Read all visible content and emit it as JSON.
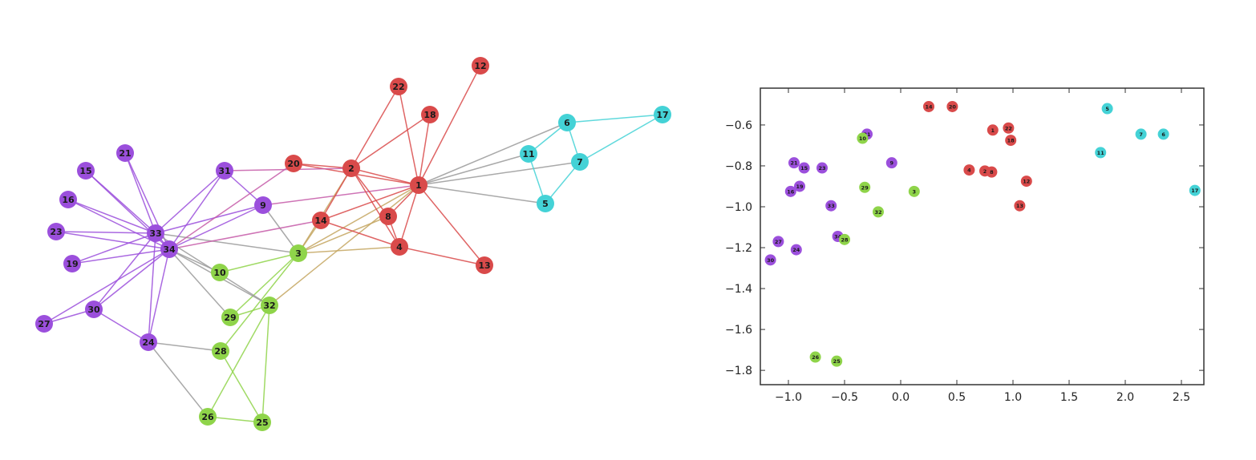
{
  "colors": {
    "purple": "#9b4fdc",
    "red": "#d94a4a",
    "cyan": "#44d2d6",
    "green": "#8fd44a",
    "gray": "#9a9a9a",
    "purple_red": "#c65aa8",
    "green_red": "#c4a660",
    "node_text": "#1a1a1a"
  },
  "graph": {
    "nodes": [
      {
        "id": "1",
        "community": "red"
      },
      {
        "id": "2",
        "community": "red"
      },
      {
        "id": "3",
        "community": "green"
      },
      {
        "id": "4",
        "community": "red"
      },
      {
        "id": "5",
        "community": "cyan"
      },
      {
        "id": "6",
        "community": "cyan"
      },
      {
        "id": "7",
        "community": "cyan"
      },
      {
        "id": "8",
        "community": "red"
      },
      {
        "id": "9",
        "community": "purple"
      },
      {
        "id": "10",
        "community": "green"
      },
      {
        "id": "11",
        "community": "cyan"
      },
      {
        "id": "12",
        "community": "red"
      },
      {
        "id": "13",
        "community": "red"
      },
      {
        "id": "14",
        "community": "red"
      },
      {
        "id": "15",
        "community": "purple"
      },
      {
        "id": "16",
        "community": "purple"
      },
      {
        "id": "17",
        "community": "cyan"
      },
      {
        "id": "18",
        "community": "red"
      },
      {
        "id": "19",
        "community": "purple"
      },
      {
        "id": "20",
        "community": "red"
      },
      {
        "id": "21",
        "community": "purple"
      },
      {
        "id": "22",
        "community": "red"
      },
      {
        "id": "23",
        "community": "purple"
      },
      {
        "id": "24",
        "community": "purple"
      },
      {
        "id": "25",
        "community": "green"
      },
      {
        "id": "26",
        "community": "green"
      },
      {
        "id": "27",
        "community": "purple"
      },
      {
        "id": "28",
        "community": "green"
      },
      {
        "id": "29",
        "community": "green"
      },
      {
        "id": "30",
        "community": "purple"
      },
      {
        "id": "31",
        "community": "purple"
      },
      {
        "id": "32",
        "community": "green"
      },
      {
        "id": "33",
        "community": "purple"
      },
      {
        "id": "34",
        "community": "purple"
      }
    ],
    "edges": [
      [
        "1",
        "2"
      ],
      [
        "1",
        "3"
      ],
      [
        "1",
        "4"
      ],
      [
        "1",
        "5"
      ],
      [
        "1",
        "6"
      ],
      [
        "1",
        "7"
      ],
      [
        "1",
        "8"
      ],
      [
        "1",
        "9"
      ],
      [
        "1",
        "11"
      ],
      [
        "1",
        "12"
      ],
      [
        "1",
        "13"
      ],
      [
        "1",
        "14"
      ],
      [
        "1",
        "18"
      ],
      [
        "1",
        "20"
      ],
      [
        "1",
        "22"
      ],
      [
        "1",
        "32"
      ],
      [
        "2",
        "3"
      ],
      [
        "2",
        "4"
      ],
      [
        "2",
        "8"
      ],
      [
        "2",
        "14"
      ],
      [
        "2",
        "18"
      ],
      [
        "2",
        "20"
      ],
      [
        "2",
        "22"
      ],
      [
        "2",
        "31"
      ],
      [
        "3",
        "4"
      ],
      [
        "3",
        "8"
      ],
      [
        "3",
        "9"
      ],
      [
        "3",
        "10"
      ],
      [
        "3",
        "14"
      ],
      [
        "3",
        "28"
      ],
      [
        "3",
        "29"
      ],
      [
        "3",
        "33"
      ],
      [
        "4",
        "8"
      ],
      [
        "4",
        "13"
      ],
      [
        "4",
        "14"
      ],
      [
        "5",
        "7"
      ],
      [
        "5",
        "11"
      ],
      [
        "6",
        "7"
      ],
      [
        "6",
        "11"
      ],
      [
        "6",
        "17"
      ],
      [
        "7",
        "17"
      ],
      [
        "9",
        "31"
      ],
      [
        "9",
        "33"
      ],
      [
        "9",
        "34"
      ],
      [
        "10",
        "34"
      ],
      [
        "14",
        "34"
      ],
      [
        "15",
        "33"
      ],
      [
        "15",
        "34"
      ],
      [
        "16",
        "33"
      ],
      [
        "16",
        "34"
      ],
      [
        "19",
        "33"
      ],
      [
        "19",
        "34"
      ],
      [
        "20",
        "34"
      ],
      [
        "21",
        "33"
      ],
      [
        "21",
        "34"
      ],
      [
        "23",
        "33"
      ],
      [
        "23",
        "34"
      ],
      [
        "24",
        "26"
      ],
      [
        "24",
        "28"
      ],
      [
        "24",
        "30"
      ],
      [
        "24",
        "33"
      ],
      [
        "24",
        "34"
      ],
      [
        "25",
        "26"
      ],
      [
        "25",
        "28"
      ],
      [
        "25",
        "32"
      ],
      [
        "26",
        "32"
      ],
      [
        "27",
        "30"
      ],
      [
        "27",
        "34"
      ],
      [
        "29",
        "32"
      ],
      [
        "29",
        "34"
      ],
      [
        "30",
        "33"
      ],
      [
        "30",
        "34"
      ],
      [
        "31",
        "33"
      ],
      [
        "31",
        "34"
      ],
      [
        "32",
        "33"
      ],
      [
        "32",
        "34"
      ],
      [
        "33",
        "34"
      ]
    ]
  },
  "chart_data": {
    "type": "scatter",
    "title": "",
    "xlabel": "",
    "ylabel": "",
    "xlim": [
      -1.25,
      2.7
    ],
    "ylim": [
      -1.87,
      -0.42
    ],
    "xticks": [
      "−1.0",
      "−0.5",
      "0.0",
      "0.5",
      "1.0",
      "1.5",
      "2.0",
      "2.5"
    ],
    "xtick_values": [
      -1.0,
      -0.5,
      0.0,
      0.5,
      1.0,
      1.5,
      2.0,
      2.5
    ],
    "yticks": [
      "−0.6",
      "−0.8",
      "−1.0",
      "−1.2",
      "−1.4",
      "−1.6",
      "−1.8"
    ],
    "ytick_values": [
      -0.6,
      -0.8,
      -1.0,
      -1.2,
      -1.4,
      -1.6,
      -1.8
    ],
    "grid": false,
    "points": [
      {
        "label": "5",
        "x": 1.84,
        "y": -0.52,
        "community": "cyan"
      },
      {
        "label": "7",
        "x": 2.14,
        "y": -0.645,
        "community": "cyan"
      },
      {
        "label": "6",
        "x": 2.34,
        "y": -0.645,
        "community": "cyan"
      },
      {
        "label": "11",
        "x": 1.78,
        "y": -0.735,
        "community": "cyan"
      },
      {
        "label": "17",
        "x": 2.62,
        "y": -0.92,
        "community": "cyan"
      },
      {
        "label": "14",
        "x": 0.25,
        "y": -0.51,
        "community": "red"
      },
      {
        "label": "20",
        "x": 0.46,
        "y": -0.51,
        "community": "red"
      },
      {
        "label": "1",
        "x": 0.82,
        "y": -0.625,
        "community": "red"
      },
      {
        "label": "22",
        "x": 0.96,
        "y": -0.615,
        "community": "red"
      },
      {
        "label": "18",
        "x": 0.98,
        "y": -0.675,
        "community": "red"
      },
      {
        "label": "4",
        "x": 0.61,
        "y": -0.82,
        "community": "red"
      },
      {
        "label": "2",
        "x": 0.75,
        "y": -0.825,
        "community": "red"
      },
      {
        "label": "8",
        "x": 0.81,
        "y": -0.83,
        "community": "red"
      },
      {
        "label": "12",
        "x": 1.12,
        "y": -0.875,
        "community": "red"
      },
      {
        "label": "13",
        "x": 1.06,
        "y": -0.995,
        "community": "red"
      },
      {
        "label": "31",
        "x": -0.3,
        "y": -0.645,
        "community": "purple"
      },
      {
        "label": "9",
        "x": -0.08,
        "y": -0.785,
        "community": "purple"
      },
      {
        "label": "21",
        "x": -0.95,
        "y": -0.785,
        "community": "purple"
      },
      {
        "label": "15",
        "x": -0.86,
        "y": -0.81,
        "community": "purple"
      },
      {
        "label": "23",
        "x": -0.7,
        "y": -0.81,
        "community": "purple"
      },
      {
        "label": "16",
        "x": -0.98,
        "y": -0.925,
        "community": "purple"
      },
      {
        "label": "19",
        "x": -0.9,
        "y": -0.9,
        "community": "purple"
      },
      {
        "label": "33",
        "x": -0.62,
        "y": -0.995,
        "community": "purple"
      },
      {
        "label": "34",
        "x": -0.56,
        "y": -1.145,
        "community": "purple"
      },
      {
        "label": "27",
        "x": -1.09,
        "y": -1.17,
        "community": "purple"
      },
      {
        "label": "24",
        "x": -0.93,
        "y": -1.21,
        "community": "purple"
      },
      {
        "label": "30",
        "x": -1.16,
        "y": -1.26,
        "community": "purple"
      },
      {
        "label": "10",
        "x": -0.34,
        "y": -0.665,
        "community": "green"
      },
      {
        "label": "29",
        "x": -0.32,
        "y": -0.905,
        "community": "green"
      },
      {
        "label": "3",
        "x": 0.12,
        "y": -0.925,
        "community": "green"
      },
      {
        "label": "32",
        "x": -0.2,
        "y": -1.025,
        "community": "green"
      },
      {
        "label": "28",
        "x": -0.5,
        "y": -1.16,
        "community": "green"
      },
      {
        "label": "26",
        "x": -0.76,
        "y": -1.735,
        "community": "green"
      },
      {
        "label": "25",
        "x": -0.57,
        "y": -1.755,
        "community": "green"
      }
    ]
  }
}
